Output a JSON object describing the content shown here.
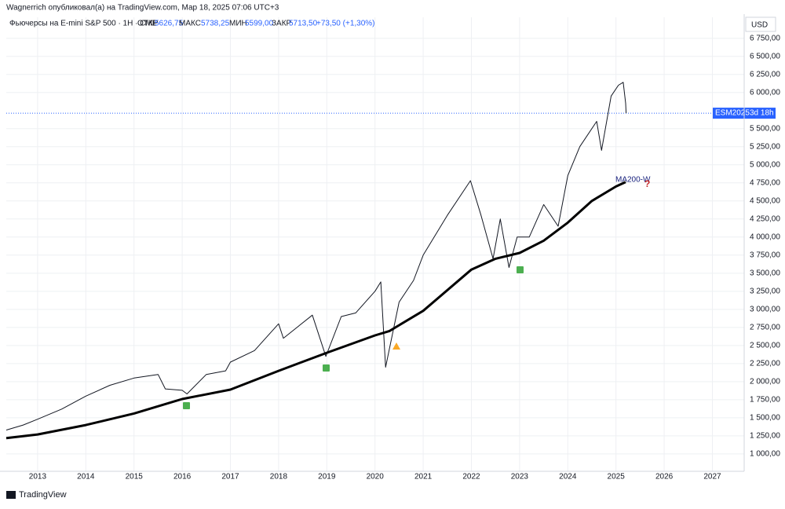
{
  "header": "Wagnerrich опубликовал(а) на TradingView.com, Мар 18, 2025 07:06 UTC+3",
  "legend": {
    "symbol": "Фьючерсы на E-mini S&P 500 · 1H · CME",
    "open_label": "ОТКР",
    "open": "5626,75",
    "high_label": "МАКС",
    "high": "5738,25",
    "low_label": "МИН",
    "low": "5599,00",
    "close_label": "ЗАКР",
    "close": "5713,50",
    "change": "+73,50 (+1,30%)"
  },
  "currency": "USD",
  "price_tag": {
    "symbol": "ESM2025",
    "countdown": "3d 18h"
  },
  "footer": "TradingView",
  "chart_data": {
    "type": "line",
    "xlim": [
      2012.35,
      2027.66
    ],
    "xticks": [
      2013,
      2014,
      2015,
      2016,
      2017,
      2018,
      2019,
      2020,
      2021,
      2022,
      2023,
      2024,
      2025,
      2026,
      2027
    ],
    "ylim": [
      760,
      7040
    ],
    "yticks": [
      {
        "value": 1000,
        "label": "1 000,00"
      },
      {
        "value": 1250,
        "label": "1 250,00"
      },
      {
        "value": 1500,
        "label": "1 500,00"
      },
      {
        "value": 1750,
        "label": "1 750,00"
      },
      {
        "value": 2000,
        "label": "2 000,00"
      },
      {
        "value": 2250,
        "label": "2 250,00"
      },
      {
        "value": 2500,
        "label": "2 500,00"
      },
      {
        "value": 2750,
        "label": "2 750,00"
      },
      {
        "value": 3000,
        "label": "3 000,00"
      },
      {
        "value": 3250,
        "label": "3 250,00"
      },
      {
        "value": 3500,
        "label": "3 500,00"
      },
      {
        "value": 3750,
        "label": "3 750,00"
      },
      {
        "value": 4000,
        "label": "4 000,00"
      },
      {
        "value": 4250,
        "label": "4 250,00"
      },
      {
        "value": 4500,
        "label": "4 500,00"
      },
      {
        "value": 4750,
        "label": "4 750,00"
      },
      {
        "value": 5000,
        "label": "5 000,00"
      },
      {
        "value": 5250,
        "label": "5 250,00"
      },
      {
        "value": 5500,
        "label": "5 500,00"
      },
      {
        "value": 6000,
        "label": "6 000,00"
      },
      {
        "value": 6250,
        "label": "6 250,00"
      },
      {
        "value": 6500,
        "label": "6 500,00"
      },
      {
        "value": 6750,
        "label": "6 750,00"
      }
    ],
    "grid": true,
    "last_price": 5713.5,
    "annotations": {
      "ma_label": "MA200-W",
      "question": "?"
    },
    "series": [
      {
        "color": "#131722",
        "width": 1,
        "x": [
          2012.35,
          2012.7,
          2013.0,
          2013.5,
          2014.0,
          2014.5,
          2015.0,
          2015.5,
          2015.65,
          2016.0,
          2016.1,
          2016.5,
          2016.9,
          2017.0,
          2017.5,
          2018.0,
          2018.1,
          2018.7,
          2018.98,
          2019.3,
          2019.6,
          2020.0,
          2020.12,
          2020.22,
          2020.5,
          2020.8,
          2021.0,
          2021.5,
          2021.98,
          2022.2,
          2022.45,
          2022.6,
          2022.78,
          2022.95,
          2023.2,
          2023.5,
          2023.8,
          2024.0,
          2024.25,
          2024.6,
          2024.7,
          2024.9,
          2025.05,
          2025.15,
          2025.2,
          2025.21
        ],
        "values": [
          1330,
          1400,
          1480,
          1620,
          1800,
          1950,
          2050,
          2100,
          1900,
          1880,
          1830,
          2100,
          2150,
          2270,
          2430,
          2800,
          2600,
          2920,
          2350,
          2900,
          2950,
          3250,
          3380,
          2200,
          3100,
          3400,
          3750,
          4300,
          4780,
          4300,
          3700,
          4250,
          3580,
          4000,
          4000,
          4450,
          4150,
          4850,
          5250,
          5600,
          5200,
          5950,
          6100,
          6140,
          5850,
          5713.5
        ]
      },
      {
        "color": "#000000",
        "width": 3,
        "x": [
          2012.35,
          2013,
          2014,
          2015,
          2016,
          2017,
          2018,
          2019,
          2020,
          2020.3,
          2021,
          2022,
          2022.5,
          2023,
          2023.5,
          2024,
          2024.5,
          2025,
          2025.2
        ],
        "values": [
          1220,
          1270,
          1400,
          1560,
          1760,
          1890,
          2150,
          2400,
          2640,
          2700,
          2980,
          3550,
          3700,
          3780,
          3950,
          4200,
          4500,
          4700,
          4760
        ]
      }
    ]
  }
}
